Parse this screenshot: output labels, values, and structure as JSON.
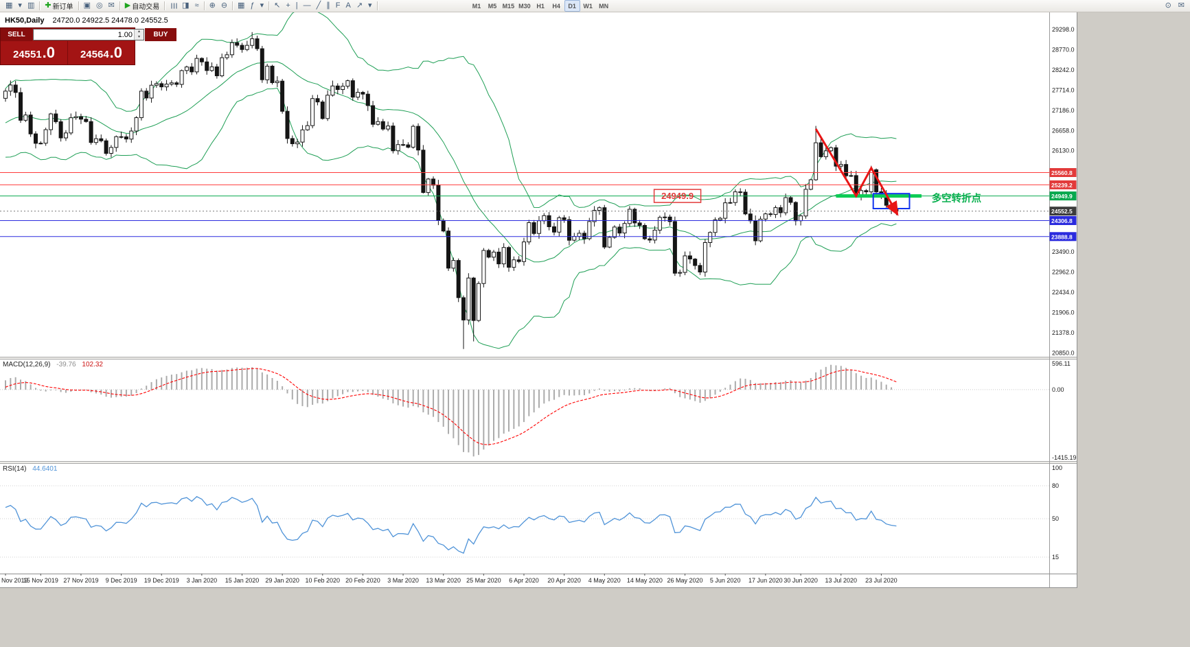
{
  "icons": {
    "spinner_up": "▴",
    "spinner_down": "▾"
  },
  "toolbar": {
    "groups": [
      {
        "items": [
          {
            "name": "new-chart-button",
            "glyph": "▦"
          },
          {
            "name": "new-chart-dropdown",
            "glyph": "▾"
          },
          {
            "name": "profiles-button",
            "glyph": "▥"
          }
        ]
      },
      {
        "items": [
          {
            "name": "new-order-button",
            "glyph": "✚",
            "glyph_color": "#1fa51f",
            "label": "新订单"
          }
        ]
      },
      {
        "items": [
          {
            "name": "terminal-button",
            "glyph": "▣"
          },
          {
            "name": "alerts-button",
            "glyph": "◎"
          },
          {
            "name": "mailbox-button",
            "glyph": "✉"
          }
        ]
      },
      {
        "items": [
          {
            "name": "auto-trading-button",
            "glyph": "▶",
            "glyph_color": "#1fa51f",
            "label": "自动交易"
          }
        ]
      },
      {
        "items": [
          {
            "name": "bar-chart-button",
            "glyph": "☰",
            "rotate": true
          },
          {
            "name": "candlestick-chart-button",
            "glyph": "◨"
          },
          {
            "name": "line-chart-button",
            "glyph": "≈"
          }
        ]
      },
      {
        "items": [
          {
            "name": "zoom-in-button",
            "glyph": "⊕"
          },
          {
            "name": "zoom-out-button",
            "glyph": "⊖"
          }
        ]
      },
      {
        "items": [
          {
            "name": "tile-windows-button",
            "glyph": "▦"
          },
          {
            "name": "indicators-button",
            "glyph": "ƒ"
          },
          {
            "name": "indicators-dropdown",
            "glyph": "▾"
          }
        ]
      },
      {
        "items": [
          {
            "name": "cursor-tool",
            "glyph": "↖"
          },
          {
            "name": "crosshair-tool",
            "glyph": "+"
          },
          {
            "name": "vertical-line-tool",
            "glyph": "|"
          },
          {
            "name": "horizontal-line-tool",
            "glyph": "―"
          },
          {
            "name": "trendline-tool",
            "glyph": "╱"
          },
          {
            "name": "channel-tool",
            "glyph": "∥"
          },
          {
            "name": "fibonacci-tool",
            "glyph": "F"
          },
          {
            "name": "text-tool",
            "glyph": "A"
          },
          {
            "name": "arrow-tool",
            "glyph": "↗"
          },
          {
            "name": "objects-dropdown",
            "glyph": "▾"
          }
        ]
      },
      {
        "timeframes": true,
        "gap_before": true,
        "items": [
          {
            "name": "timeframe-m1",
            "label": "M1"
          },
          {
            "name": "timeframe-m5",
            "label": "M5"
          },
          {
            "name": "timeframe-m15",
            "label": "M15"
          },
          {
            "name": "timeframe-m30",
            "label": "M30"
          },
          {
            "name": "timeframe-h1",
            "label": "H1"
          },
          {
            "name": "timeframe-h4",
            "label": "H4"
          },
          {
            "name": "timeframe-d1",
            "label": "D1",
            "active": true
          },
          {
            "name": "timeframe-w1",
            "label": "W1"
          },
          {
            "name": "timeframe-mn",
            "label": "MN"
          }
        ]
      }
    ],
    "right_items": [
      {
        "name": "search-button",
        "glyph": "⊙"
      },
      {
        "name": "feedback-mail-button",
        "glyph": "✉"
      }
    ]
  },
  "chart": {
    "symbol_title": "HK50,Daily",
    "ohlc_text": "24720.0 24922.5 24478.0 24552.5"
  },
  "trade_panel": {
    "sell_label": "SELL",
    "buy_label": "BUY",
    "volume": "1.00",
    "sell_price_int": "24551",
    "sell_price_dec": ".0",
    "buy_price_int": "24564",
    "buy_price_dec": ".0"
  },
  "indicators": {
    "macd_name": "MACD(12,26,9)",
    "macd_value_main": "-39.76",
    "macd_value_signal": "102.32",
    "rsi_name": "RSI(14)",
    "rsi_value": "44.6401"
  },
  "chart_data": {
    "type": "candlestick",
    "symbol": "HK50",
    "timeframe": "Daily",
    "ohlc_display": {
      "open": 24720.0,
      "high": 24922.5,
      "low": 24478.0,
      "close": 24552.5
    },
    "price_axis": {
      "max": 29298.0,
      "min": 20850.0,
      "step": 528.0
    },
    "x_axis_ticks": [
      [
        "Nov 2019",
        0
      ],
      [
        "15 Nov 2019",
        7
      ],
      [
        "27 Nov 2019",
        15
      ],
      [
        "9 Dec 2019",
        23
      ],
      [
        "19 Dec 2019",
        31
      ],
      [
        "3 Jan 2020",
        39
      ],
      [
        "15 Jan 2020",
        47
      ],
      [
        "29 Jan 2020",
        55
      ],
      [
        "10 Feb 2020",
        63
      ],
      [
        "20 Feb 2020",
        71
      ],
      [
        "3 Mar 2020",
        79
      ],
      [
        "13 Mar 2020",
        87
      ],
      [
        "25 Mar 2020",
        95
      ],
      [
        "6 Apr 2020",
        103
      ],
      [
        "20 Apr 2020",
        111
      ],
      [
        "4 May 2020",
        119
      ],
      [
        "14 May 2020",
        127
      ],
      [
        "26 May 2020",
        135
      ],
      [
        "5 Jun 2020",
        143
      ],
      [
        "17 Jun 2020",
        151
      ],
      [
        "30 Jun 2020",
        158
      ],
      [
        "13 Jul 2020",
        166
      ],
      [
        "23 Jul 2020",
        174
      ]
    ],
    "candles": {
      "first_open": 27500,
      "closes": [
        27688,
        27847,
        27651,
        26927,
        27065,
        26571,
        26324,
        26327,
        26681,
        27093,
        26889,
        26466,
        26595,
        26993,
        27021,
        26954,
        26893,
        26346,
        26444,
        26391,
        26062,
        26217,
        26498,
        26494,
        26436,
        26645,
        26994,
        27688,
        27508,
        27843,
        27884,
        27800,
        27871,
        27906,
        27864,
        28225,
        28319,
        28190,
        28543,
        28452,
        28226,
        28322,
        28087,
        28561,
        28638,
        28954,
        28885,
        28773,
        28883,
        29056,
        28796,
        27985,
        28341,
        27909,
        27950,
        27161,
        26449,
        26313,
        26357,
        26676,
        26786,
        27493,
        27405,
        26972,
        27583,
        27823,
        27730,
        27816,
        27960,
        27530,
        27656,
        27609,
        27309,
        26821,
        26893,
        26697,
        26778,
        26130,
        26292,
        26285,
        26223,
        26768,
        26147,
        25040,
        25393,
        25232,
        24309,
        24033,
        23064,
        23264,
        22292,
        21709,
        22805,
        21696,
        22663,
        23527,
        23352,
        23484,
        23175,
        23603,
        23085,
        23280,
        23236,
        23749,
        24253,
        23970,
        24300,
        24435,
        24145,
        24006,
        24380,
        24330,
        23793,
        23893,
        23977,
        23831,
        24280,
        24575,
        24643,
        23614,
        23869,
        24137,
        23980,
        24230,
        24602,
        24245,
        24180,
        23830,
        23797,
        24057,
        24388,
        24400,
        24280,
        22930,
        22952,
        23384,
        23301,
        23133,
        22961,
        23732,
        23996,
        24326,
        24366,
        24770,
        24777,
        25057,
        25050,
        24480,
        24301,
        23777,
        24344,
        24481,
        24465,
        24644,
        24511,
        24907,
        24781,
        24301,
        24427,
        25124,
        25373,
        26339,
        25975,
        26129,
        26210,
        25727,
        25772,
        25477,
        25481,
        24970,
        25089,
        25057,
        25635,
        25058,
        24994,
        24705,
        24603,
        24552
      ],
      "wick_overrides": {
        "high": {
          "49": 29230,
          "161": 26780
        },
        "low": {
          "91": 20950,
          "93": 21150
        }
      }
    },
    "bollinger": {
      "period": 20,
      "deviation": 2,
      "color": "#1d9e54"
    },
    "levels": [
      {
        "label": "25560.8",
        "price": 25560.8,
        "tag_color": "#e23a3a",
        "line_color": "#ff3b3b",
        "style": "solid",
        "name": "resistance-line-25560"
      },
      {
        "label": "25239.2",
        "price": 25239.2,
        "tag_color": "#e23a3a",
        "line_color": "#ff3b3b",
        "style": "solid",
        "name": "resistance-line-25239"
      },
      {
        "label": "24949.9",
        "price": 24949.9,
        "tag_color": "#07a84e",
        "line_color": "#07a84e",
        "style": "solid",
        "name": "pivot-line-24949"
      },
      {
        "label": "24552.5",
        "price": 24552.5,
        "tag_color": "#3d3d3d",
        "line_color": "#777777",
        "style": "dotted",
        "name": "current-price-line"
      },
      {
        "label": "24306.8",
        "price": 24306.8,
        "tag_color": "#2b2bde",
        "line_color": "#2b2bde",
        "style": "solid",
        "name": "support-line-24306"
      },
      {
        "label": "23888.8",
        "price": 23888.8,
        "tag_color": "#2b2bde",
        "line_color": "#2b2bde",
        "style": "solid",
        "name": "support-line-23888"
      }
    ],
    "annotations": {
      "price_callout": {
        "text": "24949.9",
        "center_index": 133.5,
        "price": 24949.9,
        "color": "#e23a3a"
      },
      "turning_point_text": {
        "text": "多空转折点",
        "index": 184,
        "price": 24890,
        "color": "#09b04f"
      },
      "green_band": {
        "index_start": 165,
        "index_end": 182,
        "price": 24949.9,
        "color": "#0ccc55"
      },
      "blue_box": {
        "index_start": 172.4,
        "index_end": 179.6,
        "price_top": 25010,
        "price_bottom": 24620,
        "color": "#1133ee"
      },
      "red_arrow": {
        "color": "#e81515",
        "points": [
          [
            161,
            26700
          ],
          [
            169,
            24950
          ],
          [
            172,
            25680
          ],
          [
            177,
            24520
          ]
        ]
      }
    },
    "macd": {
      "fast": 12,
      "slow": 26,
      "signal": 9,
      "scale_max": 596.11,
      "scale_min": -1415.19,
      "axis_labels": [
        "596.11",
        "0.00",
        "-1415.19"
      ],
      "histogram_color": "#ababab",
      "signal_color": "#ff0000"
    },
    "rsi": {
      "period": 14,
      "scale": [
        0,
        100
      ],
      "levels": [
        80,
        50,
        15
      ],
      "axis_labels": [
        "100",
        "80",
        "50",
        "15"
      ],
      "line_color": "#4f93d8"
    }
  }
}
